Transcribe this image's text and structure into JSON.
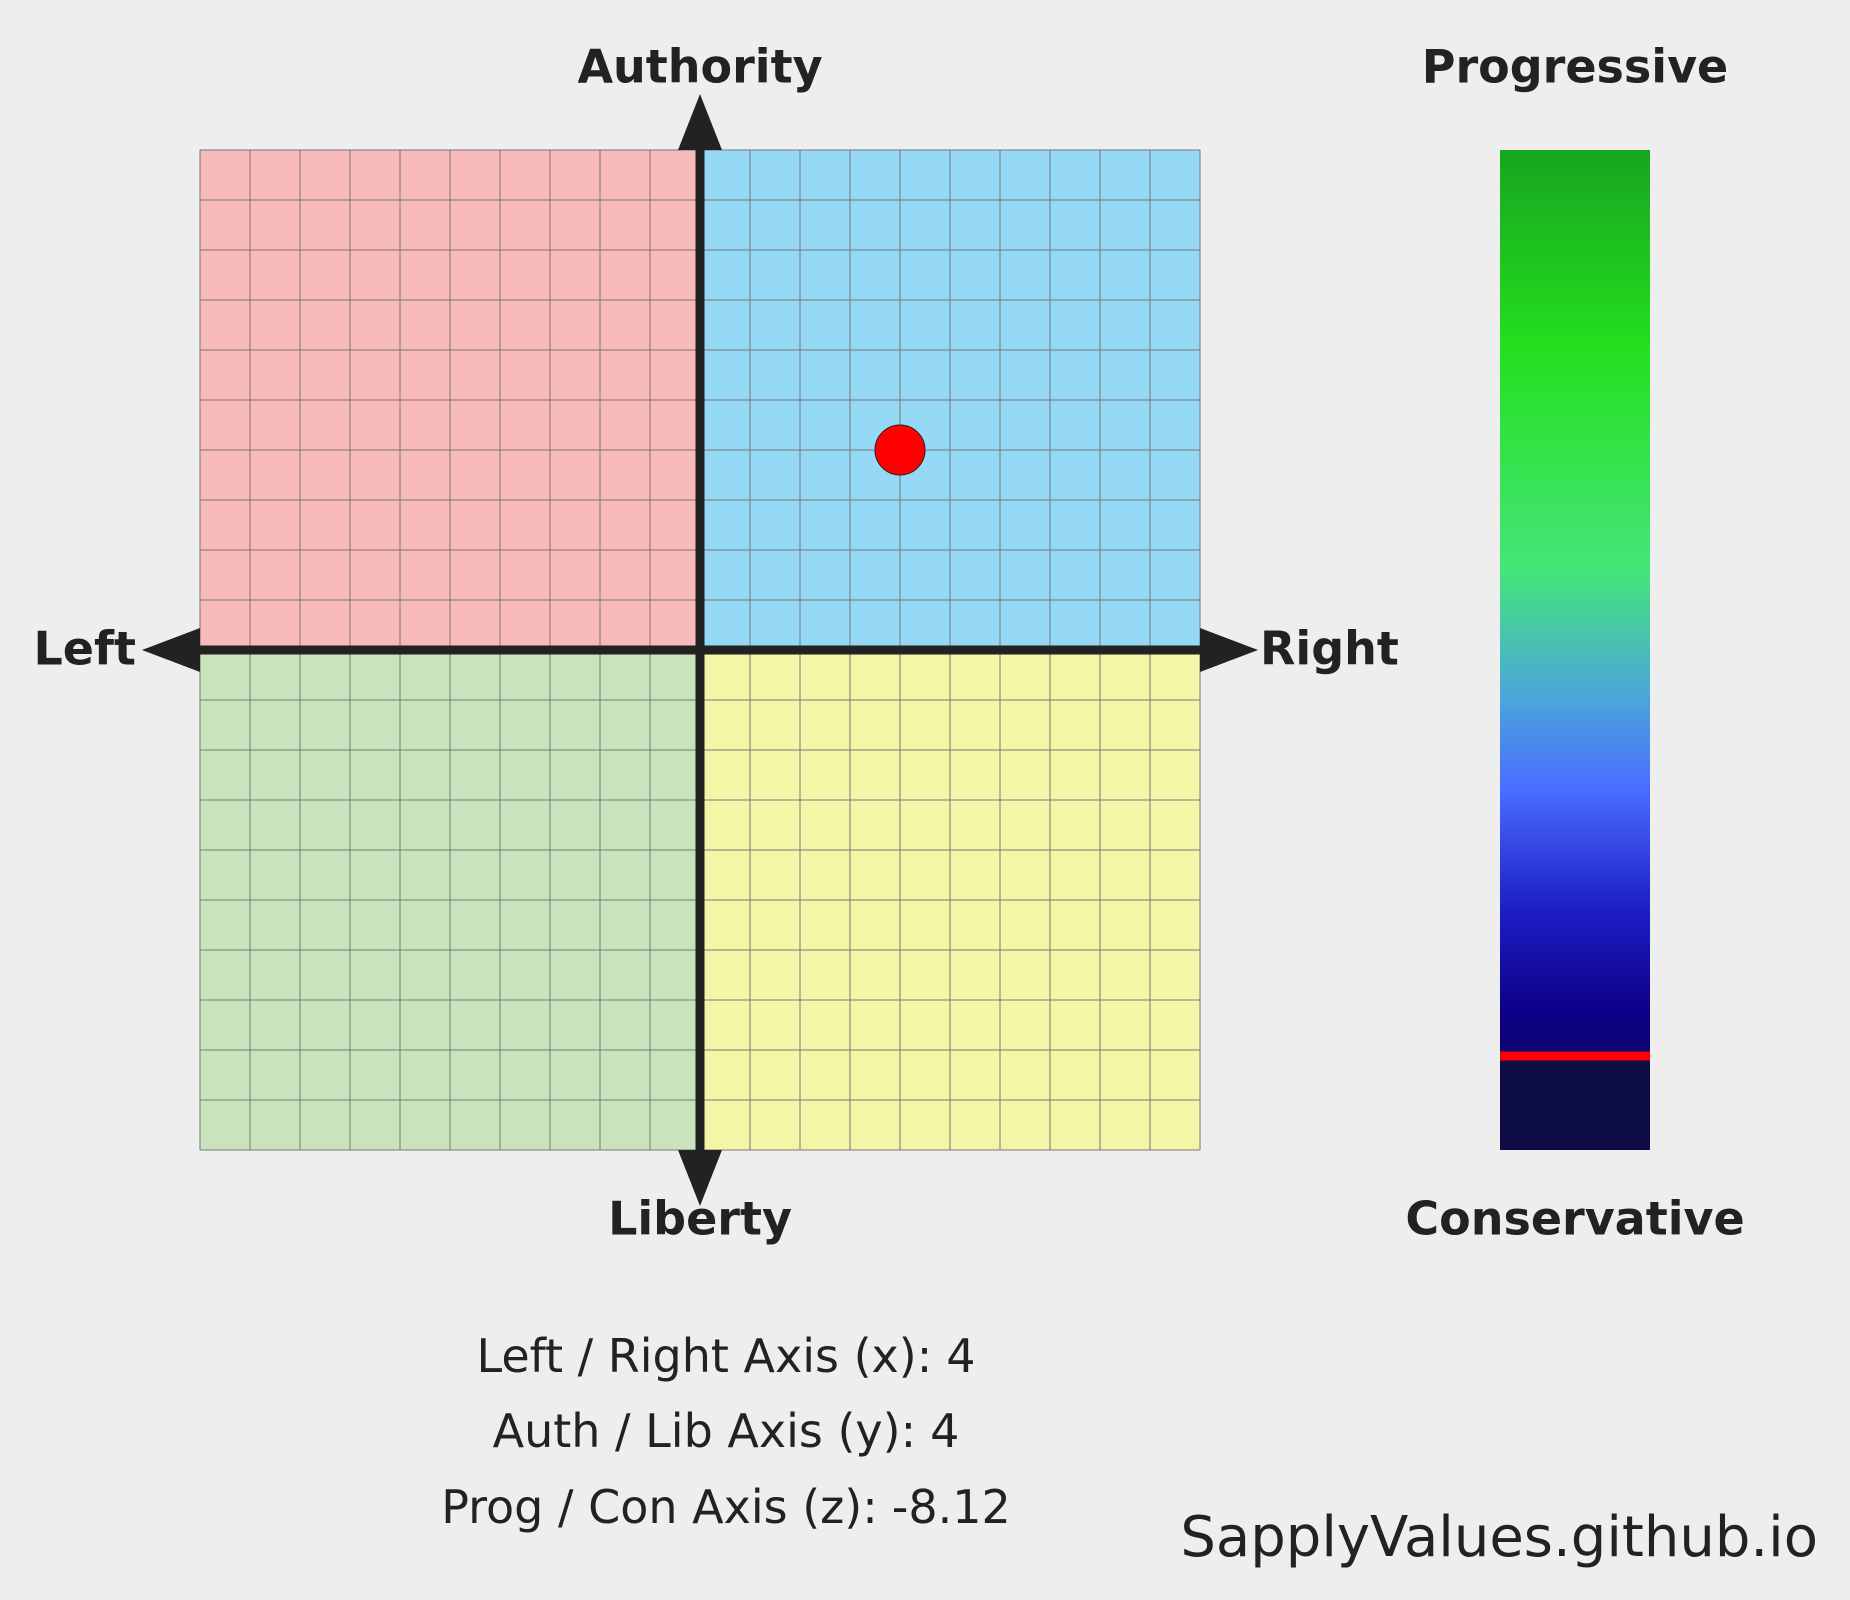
{
  "chart_data": {
    "type": "scatter",
    "x_labels": [
      "Left",
      "Right"
    ],
    "y_labels": [
      "Authority",
      "Liberty"
    ],
    "xlim": [
      -10,
      10
    ],
    "ylim": [
      -10,
      10
    ],
    "grid": true,
    "quadrant_colors": [
      "#f8baba",
      "#96d9f6",
      "#c9e4bd",
      "#f4f5a7"
    ],
    "series": [
      {
        "color": "#ff0000",
        "x": [
          4
        ],
        "y": [
          4
        ]
      }
    ],
    "z": {
      "labels": [
        "Progressive",
        "Conservative"
      ],
      "lim": [
        10,
        -10
      ],
      "value": -8.12,
      "color": "#ff0000"
    },
    "readout_labels": [
      "Left / Right Axis (x):",
      "Auth / Lib Axis (y):",
      "Prog / Con Axis (z):"
    ],
    "credit": "SapplyValues.github.io"
  }
}
